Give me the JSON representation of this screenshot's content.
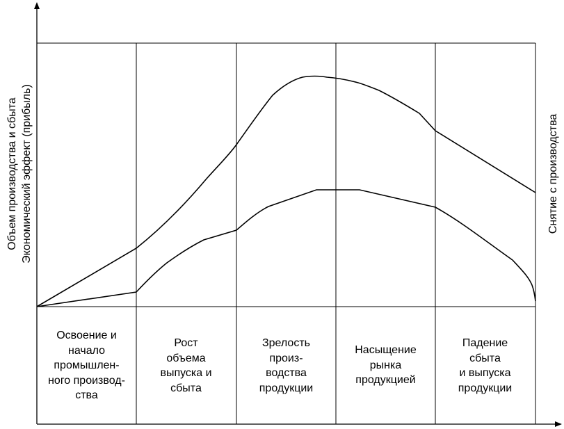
{
  "y_axis_label": "Объем производства и сбыта\nЭкономический эффект (прибыль)",
  "right_label": "Снятие с производства",
  "stages": [
    {
      "label": "Освоение и\nначало\nпромышлен-\nного производ-\nства"
    },
    {
      "label": "Рост\nобъема\nвыпуска и\nсбыта"
    },
    {
      "label": "Зрелость\nпроиз-\nводства\nпродукции"
    },
    {
      "label": "Насыщение\nрынка\nпродукцией"
    },
    {
      "label": "Падение\nсбыта\nи выпуска\nпродукции"
    }
  ]
}
